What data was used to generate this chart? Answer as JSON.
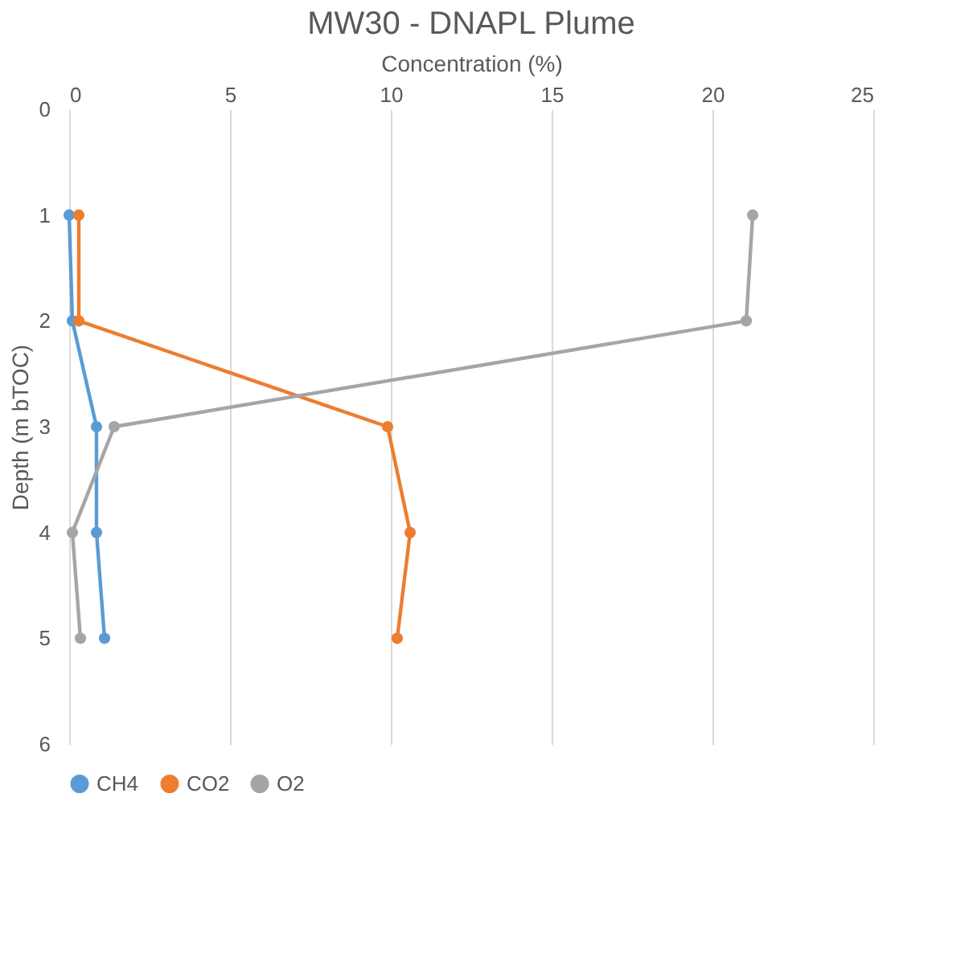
{
  "chart_data": {
    "type": "line",
    "title": "MW30 - DNAPL Plume",
    "xlabel": "Concentration (%)",
    "ylabel": "Depth (m bTOC)",
    "xlim": [
      0,
      25
    ],
    "xticks": [
      0,
      5,
      10,
      15,
      20,
      25
    ],
    "ylim": [
      6,
      0
    ],
    "yticks": [
      0,
      1,
      2,
      3,
      4,
      5,
      6
    ],
    "grid": "x",
    "legend": "bottom",
    "marker": "circle",
    "series": [
      {
        "name": "CH4",
        "color": "#5b9bd5",
        "x": [
          0,
          0.1,
          0.85,
          0.85,
          1.1
        ],
        "values": [
          1,
          2,
          3,
          4,
          5
        ]
      },
      {
        "name": "CO2",
        "color": "#ed7d31",
        "x": [
          0.3,
          0.3,
          9.9,
          10.6,
          10.2
        ],
        "values": [
          1,
          2,
          3,
          4,
          5
        ]
      },
      {
        "name": "O2",
        "color": "#a5a5a5",
        "x": [
          21.25,
          21.05,
          1.4,
          0.1,
          0.35
        ],
        "values": [
          1,
          2,
          3,
          4,
          5
        ]
      }
    ]
  }
}
